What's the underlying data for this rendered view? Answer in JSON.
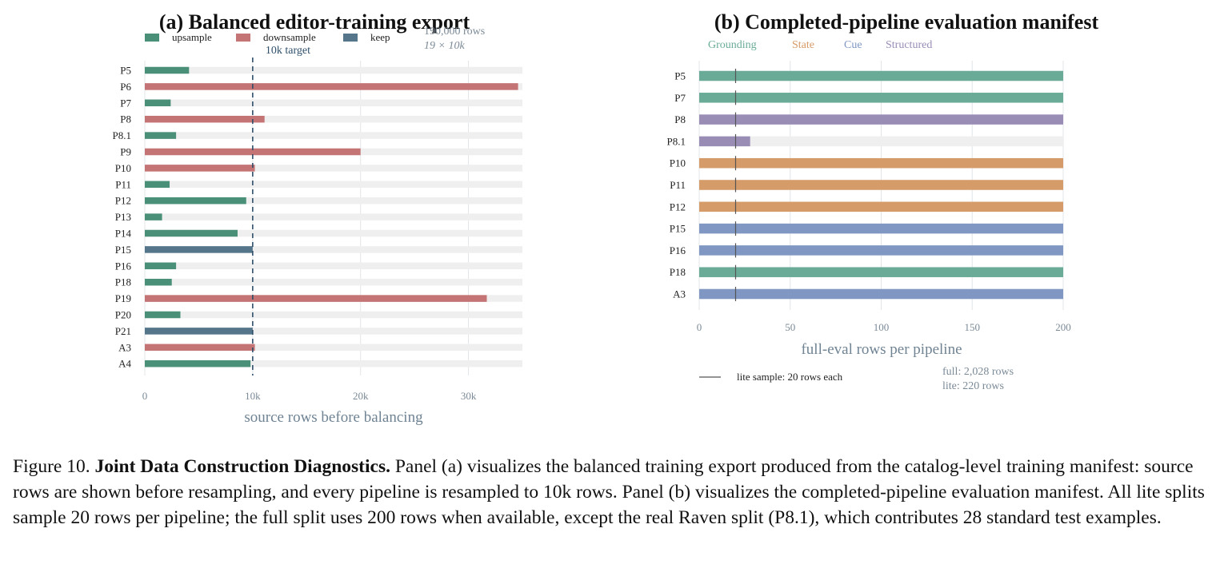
{
  "figure": {
    "caption_prefix": "Figure 10.",
    "caption_bold": "Joint Data Construction Diagnostics.",
    "caption_body": "Panel (a) visualizes the balanced training export produced from the catalog-level training manifest: source rows are shown before resampling, and every pipeline is resampled to 10k rows. Panel (b) visualizes the completed-pipeline evaluation manifest. All lite splits sample 20 rows per pipeline; the full split uses 200 rows when available, except the real Raven split (P8.1), which contributes 28 standard test examples."
  },
  "colors": {
    "upsample": "#4a8f78",
    "downsample": "#c47474",
    "keep": "#55758b",
    "grounding": "#6aab98",
    "state": "#d59b68",
    "cue": "#7f97c2",
    "structured": "#998db6",
    "track": "#efefef",
    "target_line": "#2f4f6a"
  },
  "chart_data": [
    {
      "type": "bar",
      "orientation": "horizontal",
      "title": "(a) Balanced editor-training export",
      "xlabel": "source rows before balancing",
      "xlim": [
        0,
        35000
      ],
      "xticks": [
        0,
        10000,
        20000,
        30000
      ],
      "xtick_labels": [
        "0",
        "10k",
        "20k",
        "30k"
      ],
      "legend": [
        "upsample",
        "downsample",
        "keep"
      ],
      "target": 10000,
      "target_label": "10k target",
      "note_lines": [
        "190,000 rows",
        "19 × 10k"
      ],
      "categories": [
        "P5",
        "P6",
        "P7",
        "P8",
        "P8.1",
        "P9",
        "P10",
        "P11",
        "P12",
        "P13",
        "P14",
        "P15",
        "P16",
        "P18",
        "P19",
        "P20",
        "P21",
        "A3",
        "A4"
      ],
      "values": [
        4100,
        34600,
        2400,
        11100,
        2900,
        20000,
        10200,
        2300,
        9400,
        1600,
        8600,
        10000,
        2900,
        2500,
        31700,
        3300,
        10000,
        10200,
        9800
      ],
      "groups": [
        "upsample",
        "downsample",
        "upsample",
        "downsample",
        "upsample",
        "downsample",
        "downsample",
        "upsample",
        "upsample",
        "upsample",
        "upsample",
        "keep",
        "upsample",
        "upsample",
        "downsample",
        "upsample",
        "keep",
        "downsample",
        "upsample"
      ]
    },
    {
      "type": "bar",
      "orientation": "horizontal",
      "title": "(b) Completed-pipeline evaluation manifest",
      "xlabel": "full-eval rows per pipeline",
      "xlim": [
        0,
        200
      ],
      "xticks": [
        0,
        50,
        100,
        150,
        200
      ],
      "xtick_labels": [
        "0",
        "50",
        "100",
        "150",
        "200"
      ],
      "legend": [
        "Grounding",
        "State",
        "Cue",
        "Structured"
      ],
      "lite_value": 20,
      "lite_label": "lite sample: 20 rows each",
      "note_lines": [
        "full: 2,028 rows",
        "lite: 220 rows"
      ],
      "categories": [
        "P5",
        "P7",
        "P8",
        "P8.1",
        "P10",
        "P11",
        "P12",
        "P15",
        "P16",
        "P18",
        "A3"
      ],
      "values": [
        200,
        200,
        200,
        28,
        200,
        200,
        200,
        200,
        200,
        200,
        200
      ],
      "groups": [
        "Grounding",
        "Grounding",
        "Structured",
        "Structured",
        "State",
        "State",
        "State",
        "Cue",
        "Cue",
        "Grounding",
        "Cue"
      ]
    }
  ]
}
